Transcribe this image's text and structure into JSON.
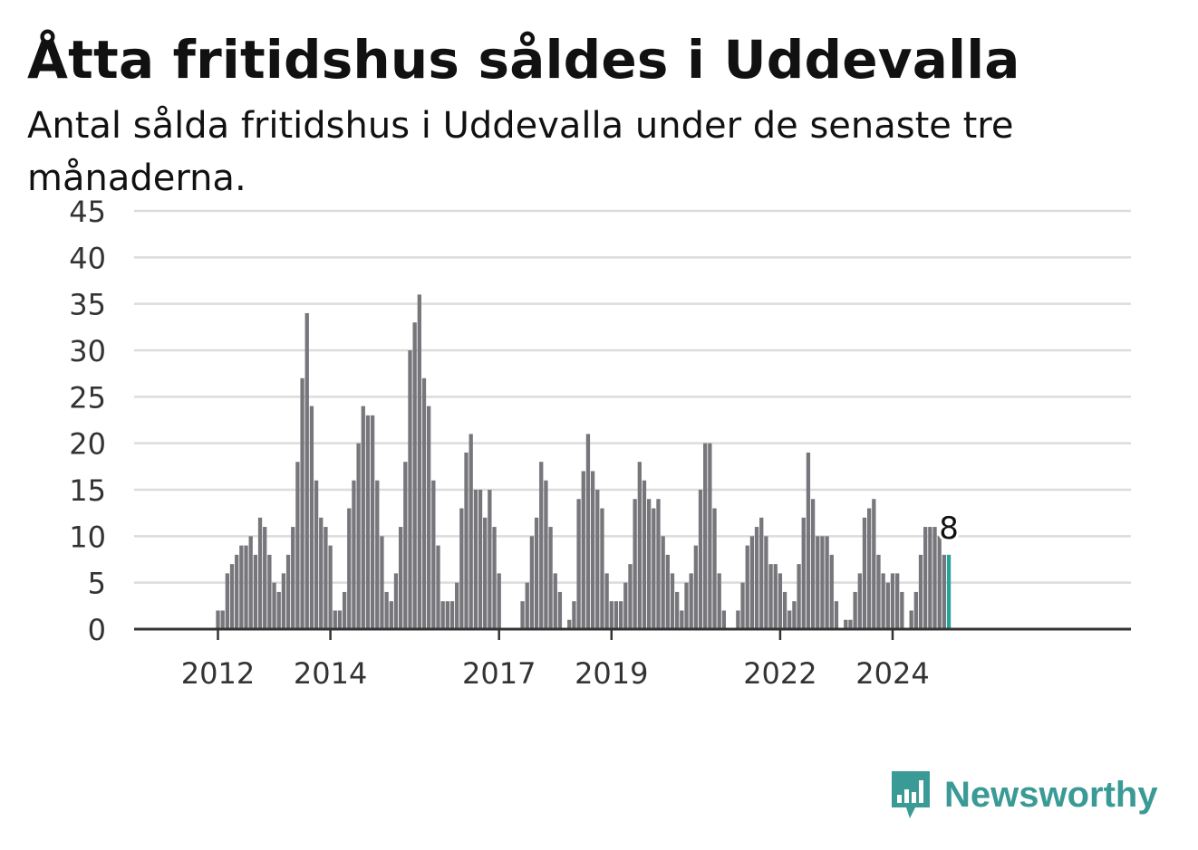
{
  "header": {
    "title": "Åtta fritidshus såldes i Uddevalla",
    "subtitle": "Antal sålda fritidshus i Uddevalla under de senaste tre månaderna."
  },
  "brand": {
    "name": "Newsworthy",
    "icon": "newsworthy-logo-icon",
    "color": "#3a9a95"
  },
  "colors": {
    "bar": "#76767b",
    "highlight": "#2aa29c",
    "grid": "#dcdcdc",
    "axis": "#333333"
  },
  "chart_data": {
    "type": "bar",
    "title": "Åtta fritidshus såldes i Uddevalla",
    "subtitle": "Antal sålda fritidshus i Uddevalla under de senaste tre månaderna.",
    "xlabel": "",
    "ylabel": "",
    "ylim": [
      0,
      45
    ],
    "yticks": [
      0,
      5,
      10,
      15,
      20,
      25,
      30,
      35,
      40,
      45
    ],
    "grid": true,
    "x_start": "2011-05",
    "x_ticks": [
      {
        "label": "2012",
        "x": "2012-01"
      },
      {
        "label": "2014",
        "x": "2014-01"
      },
      {
        "label": "2017",
        "x": "2017-01"
      },
      {
        "label": "2019",
        "x": "2019-01"
      },
      {
        "label": "2022",
        "x": "2022-01"
      },
      {
        "label": "2024",
        "x": "2024-01"
      }
    ],
    "values": [
      0,
      0,
      0,
      0,
      0,
      0,
      0,
      0,
      2,
      2,
      6,
      7,
      8,
      9,
      9,
      10,
      8,
      12,
      11,
      8,
      5,
      4,
      6,
      8,
      11,
      18,
      27,
      34,
      24,
      16,
      12,
      11,
      9,
      2,
      2,
      4,
      13,
      16,
      20,
      24,
      23,
      23,
      16,
      10,
      4,
      3,
      6,
      11,
      18,
      30,
      33,
      36,
      27,
      24,
      16,
      9,
      3,
      3,
      3,
      5,
      13,
      19,
      21,
      15,
      15,
      12,
      15,
      11,
      6,
      0,
      0,
      0,
      0,
      3,
      5,
      10,
      12,
      18,
      16,
      11,
      6,
      4,
      0,
      1,
      3,
      14,
      17,
      21,
      17,
      15,
      13,
      6,
      3,
      3,
      3,
      5,
      7,
      14,
      18,
      16,
      14,
      13,
      14,
      10,
      8,
      6,
      4,
      2,
      5,
      6,
      9,
      15,
      20,
      20,
      13,
      6,
      2,
      0,
      0,
      2,
      5,
      9,
      10,
      11,
      12,
      10,
      7,
      7,
      6,
      4,
      2,
      3,
      7,
      12,
      19,
      14,
      10,
      10,
      10,
      8,
      3,
      0,
      1,
      1,
      4,
      6,
      12,
      13,
      14,
      8,
      6,
      5,
      6,
      6,
      4,
      0,
      2,
      4,
      8,
      11,
      11,
      11,
      10,
      8,
      8
    ],
    "highlight": {
      "value": 8,
      "label": "8"
    }
  }
}
